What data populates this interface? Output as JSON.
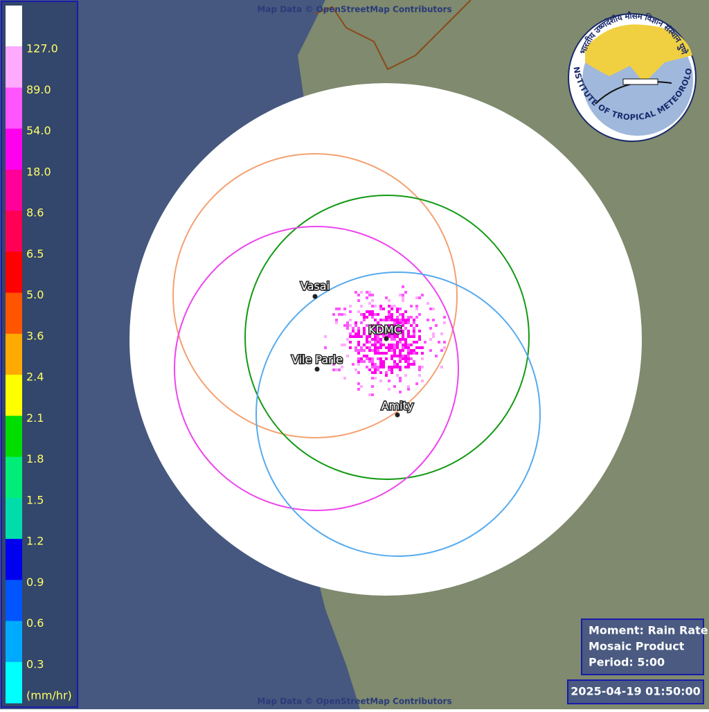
{
  "attribution": {
    "top": "Map Data © OpenStreetMap Contributors",
    "bottom": "Map Data © OpenStreetMap Contributors"
  },
  "legend": {
    "top_color": "#ffffff",
    "entries": [
      {
        "label": "127.0",
        "color": "#ffaaff"
      },
      {
        "label": "89.0",
        "color": "#ff55ff"
      },
      {
        "label": "54.0",
        "color": "#ff00ee"
      },
      {
        "label": "18.0",
        "color": "#ff0099"
      },
      {
        "label": "8.6",
        "color": "#ff0055"
      },
      {
        "label": "6.5",
        "color": "#ff0000"
      },
      {
        "label": "5.0",
        "color": "#ff5500"
      },
      {
        "label": "3.6",
        "color": "#ffaa00"
      },
      {
        "label": "2.4",
        "color": "#ffff00"
      },
      {
        "label": "2.1",
        "color": "#00dd00"
      },
      {
        "label": "1.8",
        "color": "#00ee77"
      },
      {
        "label": "1.5",
        "color": "#00ddaa"
      },
      {
        "label": "1.2",
        "color": "#0000ee"
      },
      {
        "label": "0.9",
        "color": "#0055ff"
      },
      {
        "label": "0.6",
        "color": "#00aaff"
      },
      {
        "label": "0.3",
        "color": "#00ffff"
      }
    ],
    "unit": "(mm/hr)"
  },
  "stations": [
    {
      "name": "Vasai",
      "color": "#f4a070"
    },
    {
      "name": "KDMC",
      "color": "#119911"
    },
    {
      "name": "Vile Parle",
      "color": "#ee44ee"
    },
    {
      "name": "Amity",
      "color": "#55aaee"
    }
  ],
  "logo": {
    "english": "INDIAN INSTITUTE OF TROPICAL METEOROLOGY PUNE",
    "hindi": "भारतीय उष्णदेशीय मौसम विज्ञान संस्थान पुणे"
  },
  "info": {
    "moment": "Moment: Rain Rate",
    "product": "Mosaic Product",
    "period": "Period: 5:00"
  },
  "timestamp": "2025-04-19 01:50:00"
}
